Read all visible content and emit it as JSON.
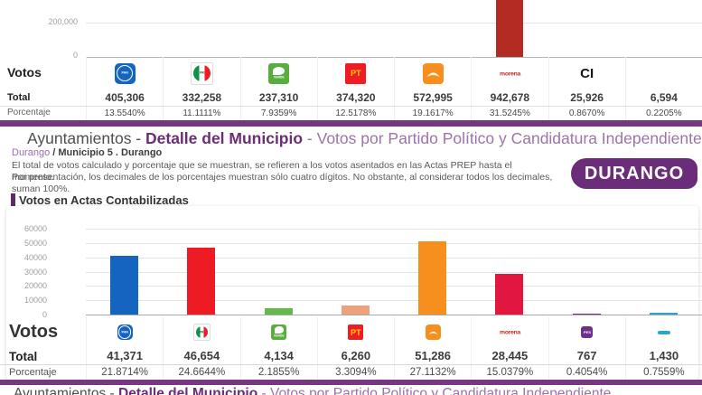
{
  "accent": {
    "purple_divider": "#76397f",
    "purple_title": "#6b2d77",
    "badge_bg": "#6b2d79"
  },
  "top_table": {
    "label_votos": "Votos",
    "label_total": "Total",
    "label_porcentaje": "Porcentaje",
    "y_ticks": [
      "200,000",
      "0"
    ],
    "chart_type": "bar",
    "parties": [
      {
        "id": "pan",
        "logo": "pan-logo",
        "logo_text": "PAN",
        "bar_color": "#1565c0",
        "value": 405306,
        "total": "405,306",
        "pct": "13.5540%"
      },
      {
        "id": "pri",
        "logo": "pri-logo",
        "logo_text": "PRI",
        "bar_color": "#0c9347",
        "value": 332258,
        "total": "332,258",
        "pct": "11.1111%"
      },
      {
        "id": "pvem",
        "logo": "pvem-logo",
        "logo_text": "VERDE",
        "bar_color": "#8dc14b",
        "value": 237310,
        "total": "237,310",
        "pct": "7.9359%"
      },
      {
        "id": "pt",
        "logo": "pt-logo",
        "logo_text": "PT",
        "bar_color": "#f2101c",
        "value": 374320,
        "total": "374,320",
        "pct": "12.5178%"
      },
      {
        "id": "mc",
        "logo": "mc-logo",
        "logo_text": "",
        "bar_color": "#f78f1e",
        "value": 572995,
        "total": "572,995",
        "pct": "19.1617%"
      },
      {
        "id": "morena",
        "logo": "morena-logo",
        "logo_text": "morena",
        "bar_color": "#b42b23",
        "value": 942678,
        "total": "942,678",
        "pct": "31.5245%"
      },
      {
        "id": "ci",
        "logo": "ci-label",
        "logo_text": "CI",
        "bar_color": "#8f8d86",
        "value": 25926,
        "total": "25,926",
        "pct": "0.8670%"
      },
      {
        "id": "otros",
        "logo": "",
        "logo_text": "",
        "bar_color": "#d9d7d2",
        "value": 6594,
        "total": "6,594",
        "pct": "0.2205%"
      }
    ]
  },
  "header": {
    "title_prefix": "Ayuntamientos - ",
    "title_strong": "Detalle del Municipio",
    "title_rest": " - Votos por Partido Político y Candidatura Independiente",
    "breadcrumb_link": "Durango",
    "breadcrumb_sep": " / ",
    "breadcrumb_current": "Municipio 5 . Durango",
    "note_line1": "El total de votos calculado y porcentaje que se muestran, se refieren a los votos asentados en las Actas PREP hasta el momento.",
    "note_line2": "Por presentación, los decimales de los porcentajes muestran sólo cuatro dígitos. No obstante, al considerar todos los decimales, suman 100%.",
    "state_badge": "DURANGO",
    "section_title": "Votos en Actas Contabilizadas"
  },
  "main_chart": {
    "chart_type": "bar",
    "label_votos": "Votos",
    "label_total": "Total",
    "label_porcentaje": "Porcentaje",
    "y_ticks": [
      "60000",
      "50000",
      "40000",
      "30000",
      "20000",
      "10000",
      "0"
    ],
    "ylim": [
      0,
      60000
    ],
    "parties": [
      {
        "id": "pan",
        "logo": "pan-logo",
        "logo_text": "PAN",
        "bar_color": "#1565c0",
        "value": 41371,
        "total": "41,371",
        "pct": "21.8714%"
      },
      {
        "id": "pri",
        "logo": "pri-logo",
        "logo_text": "PRI",
        "bar_color": "#ed1b24",
        "value": 46654,
        "total": "46,654",
        "pct": "24.6644%"
      },
      {
        "id": "pvem",
        "logo": "pvem-logo",
        "logo_text": "VERDE",
        "bar_color": "#62bb46",
        "value": 4134,
        "total": "4,134",
        "pct": "2.1855%"
      },
      {
        "id": "pt",
        "logo": "pt-logo",
        "logo_text": "PT",
        "bar_color": "#eca27d",
        "value": 6260,
        "total": "6,260",
        "pct": "3.3094%"
      },
      {
        "id": "mc",
        "logo": "mc-logo",
        "logo_text": "",
        "bar_color": "#f78f1e",
        "value": 51286,
        "total": "51,286",
        "pct": "27.1132%"
      },
      {
        "id": "morena",
        "logo": "morena-logo",
        "logo_text": "morena",
        "bar_color": "#e1173f",
        "value": 28445,
        "total": "28,445",
        "pct": "15.0379%"
      },
      {
        "id": "pes",
        "logo": "pes-logo",
        "logo_text": "PES",
        "bar_color": "#7d2a8d",
        "value": 767,
        "total": "767",
        "pct": "0.4054%"
      },
      {
        "id": "rsp",
        "logo": "rsp-logo",
        "logo_text": "",
        "bar_color": "#2aa6c9",
        "value": 1430,
        "total": "1,430",
        "pct": "0.7559%"
      }
    ]
  }
}
